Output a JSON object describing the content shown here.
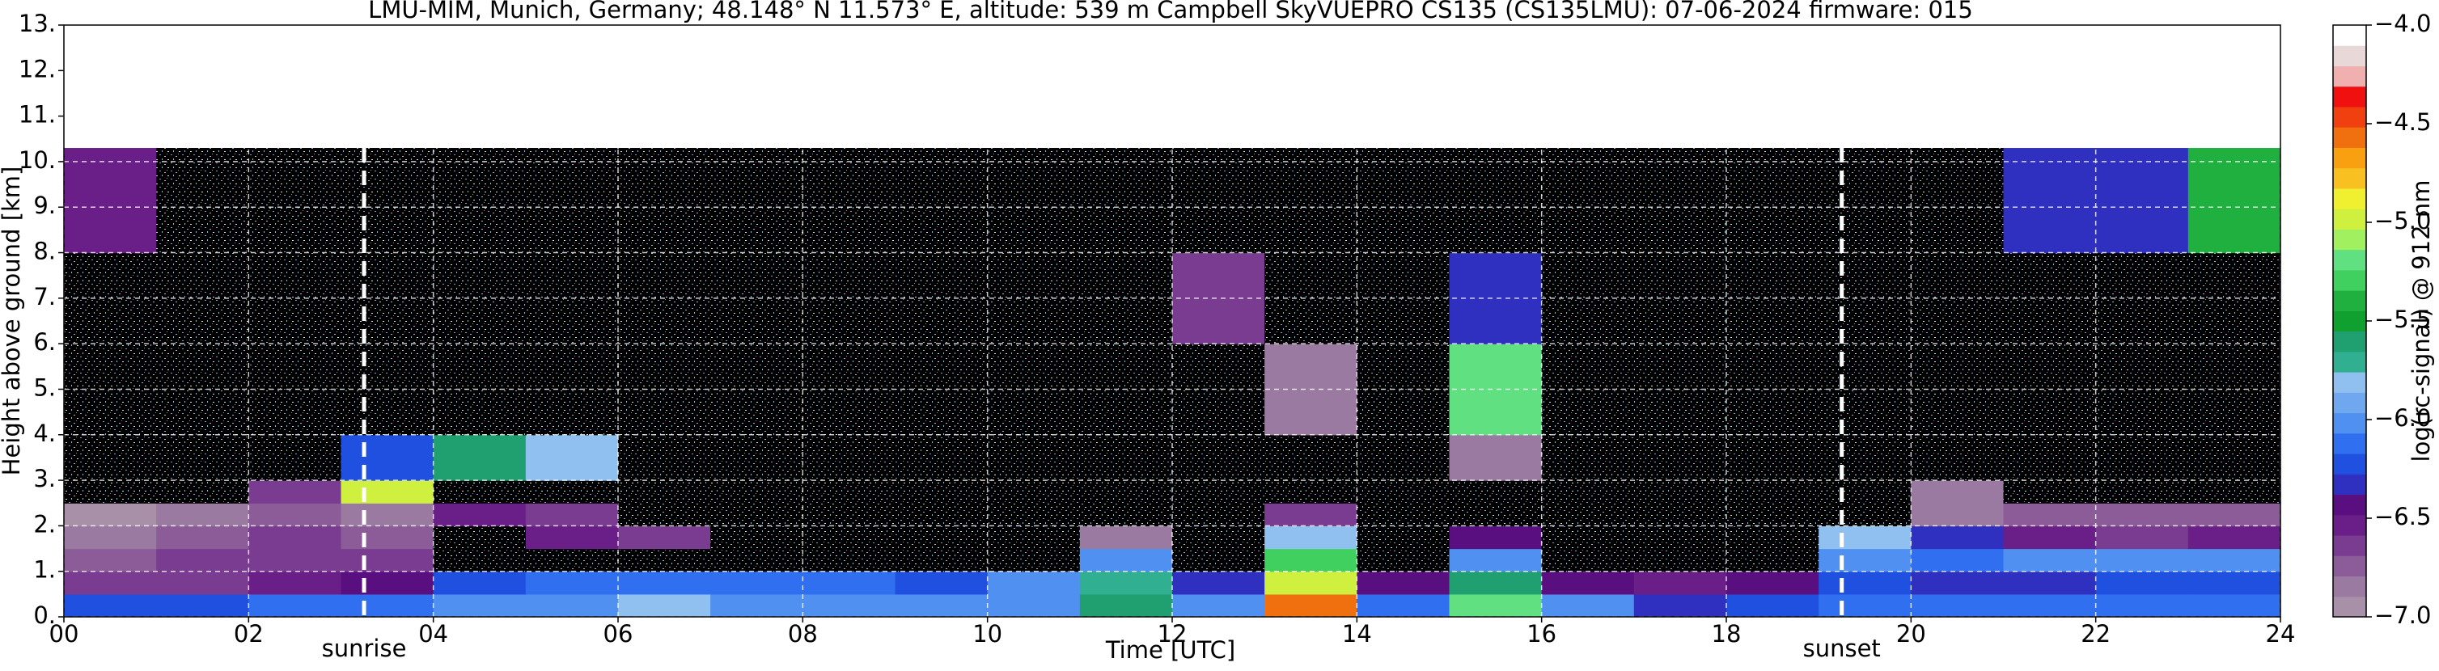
{
  "chart_data": {
    "type": "heatmap",
    "title": "LMU-MIM, Munich, Germany; 48.148° N 11.573° E, altitude: 539 m    Campbell SkyVUEPRO CS135 (CS135LMU): 07-06-2024    firmware: 015",
    "xlabel": "Time [UTC]",
    "ylabel": "Height above ground [km]",
    "xlim": [
      0,
      24
    ],
    "xticks": [
      {
        "value": 0,
        "label": "00"
      },
      {
        "value": 2,
        "label": "02"
      },
      {
        "value": 4,
        "label": "04"
      },
      {
        "value": 6,
        "label": "06"
      },
      {
        "value": 8,
        "label": "08"
      },
      {
        "value": 10,
        "label": "10"
      },
      {
        "value": 12,
        "label": "12"
      },
      {
        "value": 14,
        "label": "14"
      },
      {
        "value": 16,
        "label": "16"
      },
      {
        "value": 18,
        "label": "18"
      },
      {
        "value": 20,
        "label": "20"
      },
      {
        "value": 22,
        "label": "22"
      },
      {
        "value": 24,
        "label": "24"
      }
    ],
    "ylim": [
      0,
      13
    ],
    "yticks": [
      {
        "value": 0,
        "label": "0."
      },
      {
        "value": 1,
        "label": "1."
      },
      {
        "value": 2,
        "label": "2."
      },
      {
        "value": 3,
        "label": "3."
      },
      {
        "value": 4,
        "label": "4."
      },
      {
        "value": 5,
        "label": "5."
      },
      {
        "value": 6,
        "label": "6."
      },
      {
        "value": 7,
        "label": "7."
      },
      {
        "value": 8,
        "label": "8."
      },
      {
        "value": 9,
        "label": "9."
      },
      {
        "value": 10,
        "label": "10."
      },
      {
        "value": 11,
        "label": "11."
      },
      {
        "value": 12,
        "label": "12."
      },
      {
        "value": 13,
        "label": "13."
      }
    ],
    "grid": true,
    "x_bins": [
      0,
      1,
      2,
      3,
      4,
      5,
      6,
      7,
      8,
      9,
      10,
      11,
      12,
      13,
      14,
      15,
      16,
      17,
      18,
      19,
      20,
      21,
      22,
      23,
      24
    ],
    "y_bins": [
      0,
      0.5,
      1,
      1.5,
      2,
      2.5,
      3,
      4,
      6,
      8,
      10.3
    ],
    "z": [
      [
        -6.2,
        -6.2,
        -6.1,
        -6.1,
        -6.0,
        -6.0,
        -5.8,
        -6.0,
        -6.0,
        -6.0,
        -6.0,
        -5.6,
        -6.0,
        -4.6,
        -6.1,
        -5.2,
        -6.0,
        -6.3,
        -6.2,
        -6.1,
        -6.1,
        -6.1,
        -6.1,
        -6.1
      ],
      [
        -6.6,
        -6.6,
        -6.5,
        -6.4,
        -6.2,
        -6.1,
        -6.1,
        -6.1,
        -6.1,
        -6.2,
        -6.0,
        -5.7,
        -6.3,
        -5.0,
        -6.4,
        -5.6,
        -6.4,
        -6.5,
        -6.4,
        -6.2,
        -6.3,
        -6.3,
        -6.2,
        -6.2
      ],
      [
        -6.7,
        -6.6,
        -6.6,
        -6.6,
        -7.1,
        -7.1,
        -7.1,
        -7.1,
        -7.1,
        -7.1,
        -7.1,
        -6.0,
        -7.1,
        -5.3,
        -7.1,
        -6.0,
        -7.1,
        -7.1,
        -7.1,
        -6.0,
        -6.1,
        -6.0,
        -6.0,
        -6.0
      ],
      [
        -6.8,
        -6.7,
        -6.6,
        -6.7,
        -7.1,
        -6.5,
        -6.6,
        -7.1,
        -7.1,
        -7.1,
        -7.1,
        -6.8,
        -7.1,
        -5.8,
        -7.1,
        -6.4,
        -7.1,
        -7.1,
        -7.1,
        -5.8,
        -6.3,
        -6.5,
        -6.6,
        -6.5
      ],
      [
        -6.9,
        -6.8,
        -6.7,
        -6.8,
        -6.5,
        -6.6,
        -7.1,
        -7.1,
        -7.1,
        -7.1,
        -7.1,
        -7.1,
        -7.1,
        -6.6,
        -7.1,
        -7.1,
        -7.1,
        -7.1,
        -7.1,
        -7.1,
        -6.8,
        -6.7,
        -6.7,
        -6.7
      ],
      [
        -7.1,
        -7.1,
        -6.6,
        -5.0,
        -7.1,
        -7.1,
        -7.1,
        -7.1,
        -7.1,
        -7.1,
        -7.1,
        -7.1,
        -7.1,
        -7.1,
        -7.1,
        -7.1,
        -7.1,
        -7.1,
        -7.1,
        -7.1,
        -6.8,
        -7.1,
        -7.1,
        -7.1
      ],
      [
        -7.1,
        -7.1,
        -7.1,
        -6.2,
        -5.6,
        -5.8,
        -7.1,
        -7.1,
        -7.1,
        -7.1,
        -7.1,
        -7.1,
        -7.1,
        -7.1,
        -7.1,
        -6.8,
        -7.1,
        -7.1,
        -7.1,
        -7.1,
        -7.1,
        -7.1,
        -7.1,
        -7.1
      ],
      [
        -7.1,
        -7.1,
        -7.1,
        -7.1,
        -7.1,
        -7.1,
        -7.1,
        -7.1,
        -7.1,
        -7.1,
        -7.1,
        -7.1,
        -7.1,
        -6.8,
        -7.1,
        -5.2,
        -7.1,
        -7.1,
        -7.1,
        -7.1,
        -7.1,
        -7.1,
        -7.1,
        -7.1
      ],
      [
        -7.1,
        -7.1,
        -7.1,
        -7.1,
        -7.1,
        -7.1,
        -7.1,
        -7.1,
        -7.1,
        -7.1,
        -7.1,
        -7.1,
        -6.6,
        -7.1,
        -7.1,
        -6.3,
        -7.1,
        -7.1,
        -7.1,
        -7.1,
        -7.1,
        -7.1,
        -7.1,
        -7.1
      ],
      [
        -6.5,
        -7.1,
        -7.1,
        -7.1,
        -7.1,
        -7.1,
        -7.1,
        -7.1,
        -7.1,
        -7.1,
        -7.1,
        -7.1,
        -7.1,
        -7.1,
        -7.1,
        -7.1,
        -7.1,
        -7.1,
        -7.1,
        -7.1,
        -7.1,
        -6.3,
        -6.3,
        -5.4
      ]
    ],
    "annotations": [
      {
        "text": "sunrise",
        "x": 3.25
      },
      {
        "text": "sunset",
        "x": 19.25
      }
    ],
    "colorbar": {
      "label": "log(rc-signal) @ 912 nm",
      "zlim": [
        -7,
        -4
      ],
      "zticks": [
        {
          "value": -7,
          "label": "−7.0"
        },
        {
          "value": -6.5,
          "label": "−6.5"
        },
        {
          "value": -6,
          "label": "−6.0"
        },
        {
          "value": -5.5,
          "label": "−5.5"
        },
        {
          "value": -5,
          "label": "−5.0"
        },
        {
          "value": -4.5,
          "label": "−4.5"
        },
        {
          "value": -4,
          "label": "−4.0"
        }
      ],
      "colors": [
        "#a890a8",
        "#9a7aa0",
        "#8c5c98",
        "#7a3c90",
        "#6a1e88",
        "#5a0f80",
        "#3030c0",
        "#2050e0",
        "#3070f0",
        "#5090f0",
        "#70a8f0",
        "#90c0f0",
        "#30b090",
        "#20a070",
        "#10a030",
        "#20b040",
        "#40d060",
        "#60e080",
        "#a0f060",
        "#d0f040",
        "#f0f030",
        "#f8c020",
        "#f8a010",
        "#f07010",
        "#f04010",
        "#f01010",
        "#f0b0b0",
        "#e8d8d8",
        "#ffffff"
      ],
      "under_color": "#000000"
    }
  }
}
